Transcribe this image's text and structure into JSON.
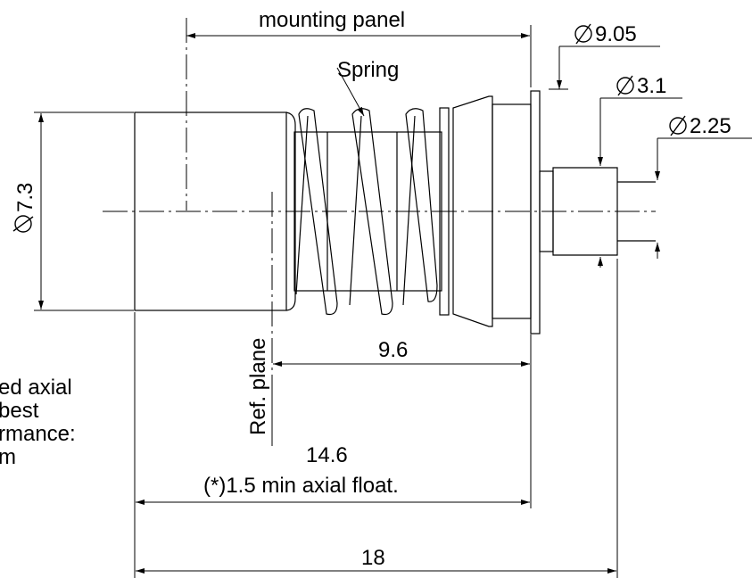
{
  "labels": {
    "mounting_panel": "mounting panel",
    "dia_9_05": "9.05",
    "dia_3_1": "3.1",
    "dia_2_25": "2.25",
    "spring": "Spring",
    "dia_7_3": "7.3",
    "ref_plane": "Ref. plane",
    "dim_9_6": "9.6",
    "dim_14_6": "14.6",
    "axial_float_note": "(*)1.5 min axial float.",
    "dim_18": "18"
  },
  "side_note": {
    "lines": [
      "ed axial",
      "best",
      "rmance:",
      "m"
    ]
  },
  "diameter_symbol": "diameter-symbol",
  "colors": {
    "line": "#000000",
    "background": "#ffffff"
  }
}
